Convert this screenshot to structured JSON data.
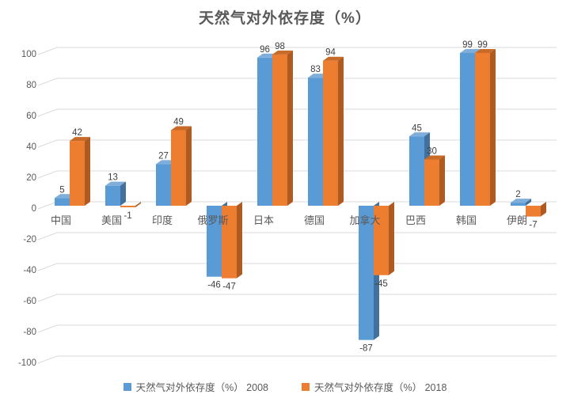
{
  "chart_data": {
    "type": "bar",
    "style": "3d-clustered-column",
    "title": "天然气对外依存度（%）",
    "categories": [
      "中国",
      "美国",
      "印度",
      "俄罗斯",
      "日本",
      "德国",
      "加拿大",
      "巴西",
      "韩国",
      "伊朗"
    ],
    "series": [
      {
        "name": "天然气对外依存度（%） 2008",
        "color": "#5B9BD5",
        "color_top": "#7EAED9",
        "color_side": "#41719C",
        "values": [
          5,
          13,
          27,
          -46,
          96,
          83,
          -87,
          45,
          99,
          2
        ]
      },
      {
        "name": "天然气对外依存度（%） 2018",
        "color": "#ED7D31",
        "color_top": "#C86A28",
        "color_side": "#AE5A21",
        "values": [
          42,
          -1,
          49,
          -47,
          98,
          94,
          -45,
          30,
          99,
          -7
        ]
      }
    ],
    "ylim": [
      -100,
      100
    ],
    "yticks": [
      100,
      80,
      60,
      40,
      20,
      0,
      -20,
      -40,
      -60,
      -80,
      -100
    ],
    "grid": true,
    "data_labels": true,
    "legend_position": "bottom",
    "colors": {
      "gridline": "#D9D9D9",
      "axis_text": "#595959",
      "category_text": "#595959",
      "data_label_text": "#404040",
      "title_text": "#595959"
    }
  }
}
